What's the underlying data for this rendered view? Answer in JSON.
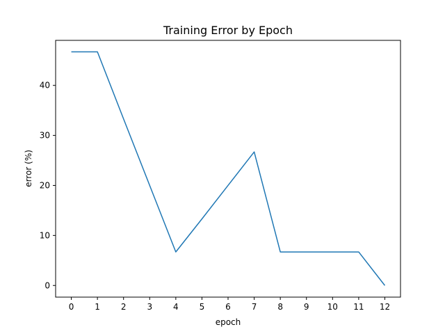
{
  "chart_data": {
    "type": "line",
    "title": "Training Error by Epoch",
    "xlabel": "epoch",
    "ylabel": "error (%)",
    "x": [
      0,
      1,
      2,
      3,
      4,
      5,
      6,
      7,
      8,
      9,
      10,
      11,
      12
    ],
    "series": [
      {
        "values": [
          46.7,
          46.7,
          33.3,
          20.0,
          6.7,
          13.3,
          20.0,
          26.7,
          6.7,
          6.7,
          6.7,
          6.7,
          0.0
        ],
        "color": "#1f77b4"
      }
    ],
    "xticks": [
      "0",
      "1",
      "2",
      "3",
      "4",
      "5",
      "6",
      "7",
      "8",
      "9",
      "10",
      "11",
      "12"
    ],
    "yticks": [
      "0",
      "10",
      "20",
      "30",
      "40"
    ],
    "xlim": [
      -0.6,
      12.6
    ],
    "ylim": [
      -2.33,
      49.0
    ],
    "grid": false,
    "legend": "none"
  }
}
